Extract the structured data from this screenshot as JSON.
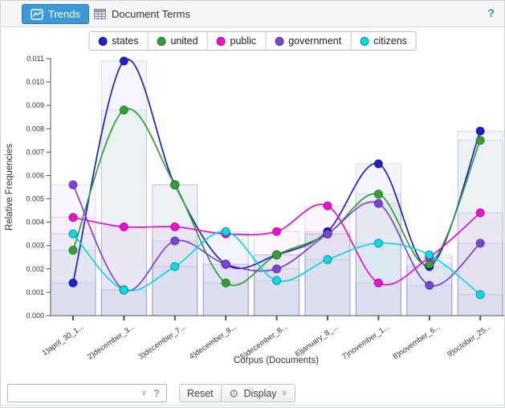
{
  "header": {
    "trends_tab": "Trends",
    "document_terms_tab": "Document Terms",
    "help_label": "?"
  },
  "accent_color": "#3b99d8",
  "chart_data": {
    "type": "line",
    "title": "",
    "xlabel": "Corpus (Documents)",
    "ylabel": "Relative Frequencies",
    "ylim": [
      0,
      0.011
    ],
    "ytick_step": 0.001,
    "grid": false,
    "legend_position": "top-center",
    "background_bars": "translucent bar per series per document, height = series value",
    "categories": [
      "1)april_30_1...",
      "2)december_3...",
      "3)december_7...",
      "4)december_8...",
      "5)december_8...",
      "6)january_8_...",
      "7)november_1...",
      "8)november_6...",
      "9)october_25..."
    ],
    "series": [
      {
        "name": "states",
        "color": "#1e1ecf",
        "values": [
          0.0014,
          0.0109,
          0.0056,
          0.0022,
          0.0026,
          0.0036,
          0.0065,
          0.0021,
          0.0079
        ]
      },
      {
        "name": "united",
        "color": "#2fa32f",
        "values": [
          0.0028,
          0.0088,
          0.0056,
          0.0014,
          0.0026,
          0.0035,
          0.0052,
          0.0022,
          0.0075
        ]
      },
      {
        "name": "public",
        "color": "#ee0dd0",
        "values": [
          0.0042,
          0.0038,
          0.0038,
          0.0035,
          0.0036,
          0.0047,
          0.0014,
          0.0025,
          0.0044
        ]
      },
      {
        "name": "government",
        "color": "#7a45d6",
        "values": [
          0.0056,
          0.0011,
          0.0032,
          0.0022,
          0.002,
          0.0035,
          0.0048,
          0.0013,
          0.0031
        ]
      },
      {
        "name": "citizens",
        "color": "#00dce6",
        "values": [
          0.0035,
          0.0011,
          0.0021,
          0.0036,
          0.0015,
          0.0024,
          0.0031,
          0.0026,
          0.0009
        ]
      }
    ]
  },
  "footer": {
    "search_value": "",
    "search_placeholder": "",
    "search_help_label": "?",
    "reset_label": "Reset",
    "display_label": "Display"
  }
}
